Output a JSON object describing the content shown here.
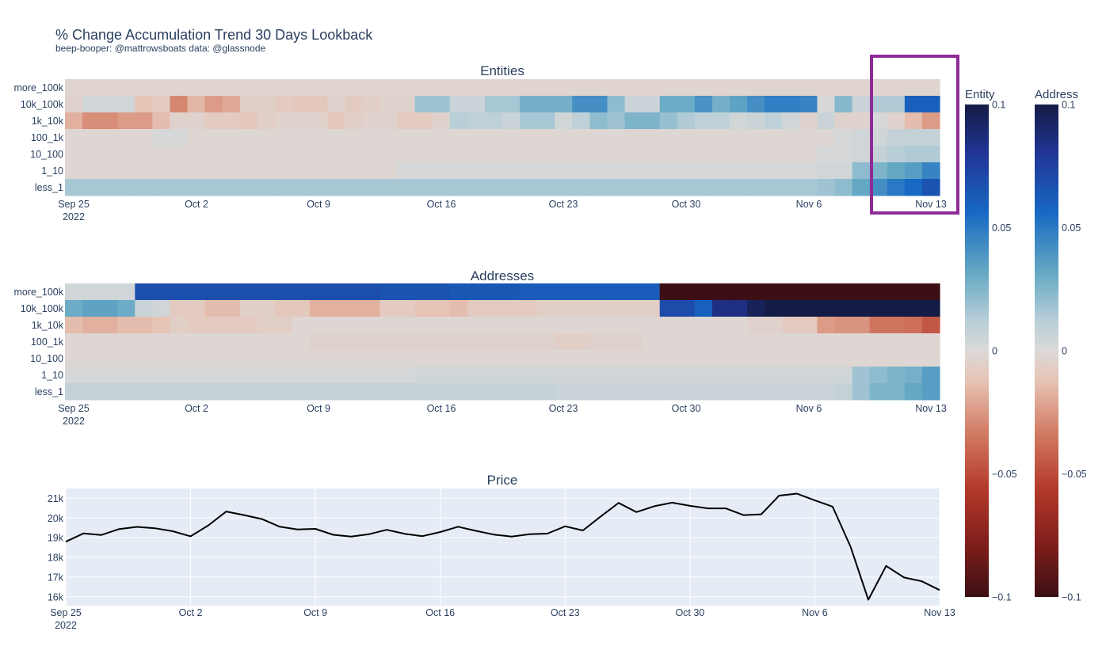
{
  "title": "% Change Accumulation Trend 30 Days Lookback",
  "subtitle": "beep-booper: @mattrowsboats data: @glassnode",
  "colorbars": [
    {
      "name": "Entity",
      "ticks": [
        "0.1",
        "0.05",
        "0",
        "−0.05",
        "−0.1"
      ]
    },
    {
      "name": "Address",
      "ticks": [
        "0.1",
        "0.05",
        "0",
        "−0.05",
        "−0.1"
      ]
    }
  ],
  "highlight_color": "#8e2c97",
  "chart_data": [
    {
      "type": "heatmap",
      "title": "Entities",
      "rows": [
        "more_100k",
        "10k_100k",
        "1k_10k",
        "100_1k",
        "10_100",
        "1_10",
        "less_1"
      ],
      "x_ticks": [
        "Sep 25",
        "Oct 2",
        "Oct 9",
        "Oct 16",
        "Oct 23",
        "Oct 30",
        "Nov 6",
        "Nov 13"
      ],
      "x_year": "2022",
      "zrange": [
        -0.1,
        0.1
      ],
      "values": [
        [
          -0.003,
          -0.003,
          -0.003,
          -0.003,
          -0.003,
          -0.003,
          -0.003,
          -0.003,
          -0.003,
          -0.003,
          -0.003,
          -0.003,
          -0.003,
          -0.003,
          -0.003,
          -0.003,
          -0.003,
          -0.003,
          -0.003,
          -0.003,
          -0.003,
          -0.003,
          -0.003,
          -0.003,
          -0.003,
          -0.003,
          -0.003,
          -0.003,
          -0.003,
          -0.003,
          -0.003,
          -0.003,
          -0.003,
          -0.003,
          -0.003,
          -0.003,
          -0.003,
          -0.003,
          -0.003,
          -0.003,
          -0.003,
          -0.003,
          -0.003,
          -0.003,
          -0.003,
          -0.003,
          -0.003,
          -0.003,
          -0.003,
          -0.003
        ],
        [
          -0.004,
          0.004,
          0.004,
          0.004,
          -0.012,
          -0.008,
          -0.03,
          -0.016,
          -0.024,
          -0.02,
          -0.006,
          -0.006,
          -0.008,
          -0.01,
          -0.01,
          -0.004,
          -0.008,
          -0.006,
          -0.004,
          -0.004,
          0.018,
          0.018,
          0.006,
          0.006,
          0.016,
          0.016,
          0.028,
          0.028,
          0.028,
          0.042,
          0.042,
          0.022,
          0.006,
          0.006,
          0.03,
          0.03,
          0.04,
          0.028,
          0.034,
          0.042,
          0.048,
          0.048,
          0.046,
          0.002,
          0.024,
          0.006,
          0.014,
          0.014,
          0.06,
          0.06
        ],
        [
          -0.018,
          -0.028,
          -0.028,
          -0.024,
          -0.024,
          -0.014,
          -0.004,
          -0.004,
          -0.008,
          -0.008,
          -0.01,
          -0.006,
          -0.004,
          -0.004,
          -0.004,
          -0.01,
          -0.006,
          -0.004,
          -0.004,
          -0.008,
          -0.008,
          -0.004,
          0.012,
          0.01,
          0.01,
          0.006,
          0.016,
          0.016,
          0.004,
          0.01,
          0.022,
          0.018,
          0.026,
          0.026,
          0.02,
          0.014,
          0.01,
          0.01,
          0.004,
          0.006,
          0.01,
          0.004,
          -0.004,
          0.006,
          -0.004,
          -0.004,
          0.002,
          -0.004,
          -0.014,
          -0.024
        ],
        [
          -0.002,
          -0.002,
          -0.002,
          -0.002,
          -0.002,
          0.002,
          0.002,
          -0.002,
          -0.002,
          -0.002,
          -0.002,
          -0.002,
          -0.002,
          -0.002,
          -0.002,
          -0.002,
          -0.002,
          -0.002,
          -0.002,
          -0.002,
          -0.002,
          -0.002,
          -0.002,
          -0.002,
          -0.002,
          -0.002,
          -0.002,
          -0.002,
          -0.002,
          -0.002,
          -0.002,
          -0.002,
          -0.002,
          -0.002,
          -0.002,
          -0.002,
          -0.002,
          -0.002,
          -0.002,
          -0.002,
          -0.002,
          -0.002,
          -0.002,
          -0.002,
          0.002,
          0.004,
          0.004,
          0.008,
          0.008,
          0.008
        ],
        [
          -0.002,
          -0.002,
          -0.002,
          -0.002,
          -0.002,
          -0.002,
          -0.002,
          -0.002,
          -0.002,
          -0.002,
          -0.002,
          -0.002,
          -0.002,
          -0.002,
          -0.002,
          -0.002,
          -0.002,
          -0.002,
          -0.002,
          -0.002,
          -0.002,
          -0.002,
          -0.002,
          -0.002,
          -0.002,
          -0.002,
          -0.002,
          -0.002,
          -0.002,
          -0.002,
          -0.002,
          -0.002,
          -0.002,
          -0.002,
          -0.002,
          -0.002,
          -0.002,
          -0.002,
          -0.002,
          -0.002,
          -0.002,
          -0.002,
          -0.002,
          0.002,
          0.002,
          0.004,
          0.008,
          0.012,
          0.014,
          0.014
        ],
        [
          -0.002,
          -0.002,
          -0.002,
          -0.002,
          -0.002,
          -0.002,
          -0.002,
          -0.002,
          -0.002,
          -0.002,
          -0.002,
          -0.002,
          -0.002,
          -0.002,
          -0.002,
          -0.002,
          -0.002,
          -0.002,
          -0.002,
          0.002,
          0.002,
          0.002,
          0.002,
          0.002,
          0.002,
          0.002,
          0.002,
          0.002,
          0.002,
          0.002,
          0.002,
          0.002,
          0.002,
          0.002,
          0.002,
          0.002,
          0.002,
          0.002,
          0.002,
          0.002,
          0.002,
          0.002,
          0.002,
          0.004,
          0.004,
          0.022,
          0.026,
          0.032,
          0.036,
          0.046
        ],
        [
          0.016,
          0.016,
          0.016,
          0.016,
          0.016,
          0.016,
          0.016,
          0.016,
          0.016,
          0.016,
          0.016,
          0.016,
          0.016,
          0.016,
          0.016,
          0.016,
          0.016,
          0.016,
          0.016,
          0.016,
          0.016,
          0.016,
          0.016,
          0.016,
          0.016,
          0.016,
          0.016,
          0.016,
          0.016,
          0.016,
          0.016,
          0.016,
          0.016,
          0.016,
          0.016,
          0.016,
          0.016,
          0.016,
          0.016,
          0.016,
          0.016,
          0.016,
          0.016,
          0.018,
          0.022,
          0.032,
          0.042,
          0.05,
          0.056,
          0.066
        ]
      ]
    },
    {
      "type": "heatmap",
      "title": "Addresses",
      "rows": [
        "more_100k",
        "10k_100k",
        "1k_10k",
        "100_1k",
        "10_100",
        "1_10",
        "less_1"
      ],
      "x_ticks": [
        "Sep 25",
        "Oct 2",
        "Oct 9",
        "Oct 16",
        "Oct 23",
        "Oct 30",
        "Nov 6",
        "Nov 13"
      ],
      "x_year": "2022",
      "zrange": [
        -0.1,
        0.1
      ],
      "values": [
        [
          0.004,
          0.004,
          0.004,
          0.004,
          0.068,
          0.068,
          0.068,
          0.068,
          0.068,
          0.068,
          0.068,
          0.068,
          0.068,
          0.068,
          0.068,
          0.068,
          0.068,
          0.068,
          0.066,
          0.066,
          0.066,
          0.066,
          0.064,
          0.064,
          0.064,
          0.064,
          0.062,
          0.062,
          0.062,
          0.062,
          0.062,
          0.062,
          0.062,
          0.062,
          -0.1,
          -0.1,
          -0.1,
          -0.1,
          -0.1,
          -0.1,
          -0.1,
          -0.1,
          -0.1,
          -0.1,
          -0.1,
          -0.1,
          -0.1,
          -0.1,
          -0.1,
          -0.1
        ],
        [
          0.03,
          0.034,
          0.034,
          0.03,
          0.006,
          0.004,
          -0.008,
          -0.008,
          -0.014,
          -0.014,
          -0.006,
          -0.006,
          -0.01,
          -0.01,
          -0.018,
          -0.018,
          -0.018,
          -0.018,
          -0.008,
          -0.008,
          -0.012,
          -0.012,
          -0.014,
          -0.008,
          -0.008,
          -0.008,
          -0.008,
          -0.006,
          -0.006,
          -0.006,
          -0.006,
          -0.006,
          -0.006,
          -0.006,
          0.07,
          0.07,
          0.06,
          0.085,
          0.085,
          0.095,
          0.1,
          0.1,
          0.1,
          0.1,
          0.1,
          0.1,
          0.1,
          0.1,
          0.1,
          0.1
        ],
        [
          -0.014,
          -0.018,
          -0.018,
          -0.014,
          -0.014,
          -0.012,
          -0.006,
          -0.008,
          -0.008,
          -0.008,
          -0.008,
          -0.006,
          -0.006,
          -0.002,
          -0.002,
          -0.002,
          -0.002,
          -0.002,
          -0.002,
          -0.002,
          -0.002,
          -0.002,
          -0.002,
          -0.002,
          -0.002,
          -0.002,
          -0.002,
          -0.002,
          -0.002,
          -0.002,
          -0.002,
          -0.002,
          -0.002,
          -0.002,
          -0.002,
          -0.002,
          -0.002,
          -0.002,
          -0.002,
          -0.004,
          -0.004,
          -0.008,
          -0.008,
          -0.024,
          -0.026,
          -0.026,
          -0.036,
          -0.036,
          -0.038,
          -0.046
        ],
        [
          -0.002,
          -0.002,
          -0.002,
          -0.002,
          -0.002,
          -0.002,
          -0.002,
          -0.002,
          -0.002,
          -0.002,
          -0.002,
          -0.002,
          -0.002,
          -0.002,
          -0.004,
          -0.004,
          -0.004,
          -0.004,
          -0.004,
          -0.004,
          -0.004,
          -0.004,
          -0.004,
          -0.004,
          -0.004,
          -0.004,
          -0.004,
          -0.004,
          -0.006,
          -0.006,
          -0.004,
          -0.004,
          -0.004,
          -0.002,
          -0.002,
          -0.002,
          -0.002,
          -0.002,
          -0.002,
          -0.002,
          -0.002,
          -0.002,
          -0.002,
          -0.002,
          -0.002,
          -0.002,
          -0.002,
          -0.002,
          -0.002,
          -0.002
        ],
        [
          -0.002,
          -0.002,
          -0.002,
          -0.002,
          -0.002,
          -0.002,
          -0.002,
          -0.002,
          -0.002,
          -0.002,
          -0.002,
          -0.002,
          -0.002,
          -0.002,
          -0.002,
          -0.002,
          -0.002,
          -0.002,
          -0.002,
          -0.002,
          -0.002,
          -0.002,
          -0.002,
          -0.002,
          -0.002,
          -0.002,
          -0.002,
          -0.002,
          -0.002,
          -0.002,
          -0.002,
          -0.002,
          -0.002,
          -0.002,
          -0.002,
          -0.002,
          -0.002,
          -0.002,
          -0.002,
          -0.002,
          -0.002,
          -0.002,
          -0.002,
          -0.002,
          -0.002,
          -0.002,
          -0.002,
          -0.002,
          -0.002,
          -0.002
        ],
        [
          0.002,
          0.002,
          0.002,
          0.002,
          0.002,
          0.002,
          0.002,
          0.002,
          0.002,
          0.002,
          0.002,
          0.002,
          0.002,
          0.002,
          0.002,
          0.002,
          0.002,
          0.002,
          0.002,
          0.002,
          0.004,
          0.004,
          0.004,
          0.004,
          0.004,
          0.004,
          0.004,
          0.004,
          0.004,
          0.004,
          0.004,
          0.004,
          0.004,
          0.004,
          0.004,
          0.004,
          0.004,
          0.004,
          0.004,
          0.004,
          0.004,
          0.004,
          0.004,
          0.004,
          0.004,
          0.018,
          0.022,
          0.026,
          0.028,
          0.036
        ],
        [
          0.008,
          0.008,
          0.008,
          0.008,
          0.008,
          0.008,
          0.008,
          0.008,
          0.008,
          0.008,
          0.008,
          0.008,
          0.008,
          0.008,
          0.008,
          0.008,
          0.008,
          0.008,
          0.008,
          0.008,
          0.008,
          0.008,
          0.008,
          0.008,
          0.008,
          0.008,
          0.008,
          0.008,
          0.006,
          0.006,
          0.006,
          0.006,
          0.006,
          0.006,
          0.006,
          0.006,
          0.006,
          0.006,
          0.006,
          0.006,
          0.006,
          0.006,
          0.006,
          0.006,
          0.008,
          0.018,
          0.026,
          0.026,
          0.032,
          0.036
        ]
      ]
    },
    {
      "type": "line",
      "title": "Price",
      "x_ticks": [
        "Sep 25",
        "Oct 2",
        "Oct 9",
        "Oct 16",
        "Oct 23",
        "Oct 30",
        "Nov 6",
        "Nov 13"
      ],
      "x_year": "2022",
      "y_ticks": [
        "16k",
        "17k",
        "18k",
        "19k",
        "20k",
        "21k"
      ],
      "ylim": [
        15550,
        21500
      ],
      "series": [
        {
          "name": "Price",
          "color": "#000000",
          "values": [
            18800,
            19220,
            19140,
            19440,
            19550,
            19480,
            19330,
            19070,
            19630,
            20330,
            20150,
            19950,
            19560,
            19420,
            19450,
            19150,
            19060,
            19180,
            19400,
            19200,
            19080,
            19290,
            19560,
            19350,
            19160,
            19060,
            19180,
            19210,
            19580,
            19370,
            20080,
            20770,
            20300,
            20600,
            20780,
            20620,
            20490,
            20490,
            20150,
            20190,
            21140,
            21240,
            20900,
            20580,
            18560,
            15850,
            17570,
            16980,
            16790,
            16340
          ]
        }
      ]
    }
  ]
}
